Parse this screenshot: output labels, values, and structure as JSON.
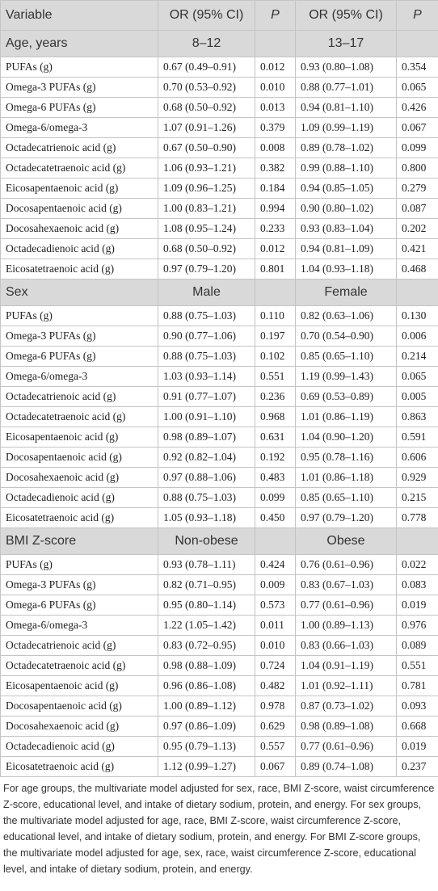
{
  "table": {
    "header": [
      "Variable",
      "OR (95% CI)",
      "P",
      "OR (95% CI)",
      "P"
    ],
    "sections": [
      {
        "label": "Age, years",
        "group1": "8–12",
        "group2": "13–17",
        "rows": [
          [
            "PUFAs (g)",
            "0.67 (0.49–0.91)",
            "0.012",
            "0.93 (0.80–1.08)",
            "0.354"
          ],
          [
            "Omega-3 PUFAs (g)",
            "0.70 (0.53–0.92)",
            "0.010",
            "0.88 (0.77–1.01)",
            "0.065"
          ],
          [
            "Omega-6 PUFAs (g)",
            "0.68 (0.50–0.92)",
            "0.013",
            "0.94 (0.81–1.10)",
            "0.426"
          ],
          [
            "Omega-6/omega-3",
            "1.07 (0.91–1.26)",
            "0.379",
            "1.09 (0.99–1.19)",
            "0.067"
          ],
          [
            "Octadecatrienoic acid (g)",
            "0.67 (0.50–0.90)",
            "0.008",
            "0.89 (0.78–1.02)",
            "0.099"
          ],
          [
            "Octadecatetraenoic acid (g)",
            "1.06 (0.93–1.21)",
            "0.382",
            "0.99 (0.88–1.10)",
            "0.800"
          ],
          [
            "Eicosapentaenoic acid (g)",
            "1.09 (0.96–1.25)",
            "0.184",
            "0.94 (0.85–1.05)",
            "0.279"
          ],
          [
            "Docosapentaenoic acid (g)",
            "1.00 (0.83–1.21)",
            "0.994",
            "0.90 (0.80–1.02)",
            "0.087"
          ],
          [
            "Docosahexaenoic acid (g)",
            "1.08 (0.95–1.24)",
            "0.233",
            "0.93 (0.83–1.04)",
            "0.202"
          ],
          [
            "Octadecadienoic acid (g)",
            "0.68 (0.50–0.92)",
            "0.012",
            "0.94 (0.81–1.09)",
            "0.421"
          ],
          [
            "Eicosatetraenoic acid (g)",
            "0.97 (0.79–1.20)",
            "0.801",
            "1.04 (0.93–1.18)",
            "0.468"
          ]
        ]
      },
      {
        "label": "Sex",
        "group1": "Male",
        "group2": "Female",
        "rows": [
          [
            "PUFAs (g)",
            "0.88 (0.75–1.03)",
            "0.110",
            "0.82 (0.63–1.06)",
            "0.130"
          ],
          [
            "Omega-3 PUFAs (g)",
            "0.90 (0.77–1.06)",
            "0.197",
            "0.70 (0.54–0.90)",
            "0.006"
          ],
          [
            "Omega-6 PUFAs (g)",
            "0.88 (0.75–1.03)",
            "0.102",
            "0.85 (0.65–1.10)",
            "0.214"
          ],
          [
            "Omega-6/omega-3",
            "1.03 (0.93–1.14)",
            "0.551",
            "1.19 (0.99–1.43)",
            "0.065"
          ],
          [
            "Octadecatrienoic acid (g)",
            "0.91 (0.77–1.07)",
            "0.236",
            "0.69 (0.53–0.89)",
            "0.005"
          ],
          [
            "Octadecatetraenoic acid (g)",
            "1.00 (0.91–1.10)",
            "0.968",
            "1.01 (0.86–1.19)",
            "0.863"
          ],
          [
            "Eicosapentaenoic acid (g)",
            "0.98 (0.89–1.07)",
            "0.631",
            "1.04 (0.90–1.20)",
            "0.591"
          ],
          [
            "Docosapentaenoic acid (g)",
            "0.92 (0.82–1.04)",
            "0.192",
            "0.95 (0.78–1.16)",
            "0.606"
          ],
          [
            "Docosahexaenoic acid (g)",
            "0.97 (0.88–1.06)",
            "0.483",
            "1.01 (0.86–1.18)",
            "0.929"
          ],
          [
            "Octadecadienoic acid (g)",
            "0.88 (0.75–1.03)",
            "0.099",
            "0.85 (0.65–1.10)",
            "0.215"
          ],
          [
            "Eicosatetraenoic acid (g)",
            "1.05 (0.93–1.18)",
            "0.450",
            "0.97 (0.79–1.20)",
            "0.778"
          ]
        ]
      },
      {
        "label": "BMI Z-score",
        "group1": "Non-obese",
        "group2": "Obese",
        "rows": [
          [
            "PUFAs (g)",
            "0.93 (0.78–1.11)",
            "0.424",
            "0.76 (0.61–0.96)",
            "0.022"
          ],
          [
            "Omega-3 PUFAs (g)",
            "0.82 (0.71–0.95)",
            "0.009",
            "0.83 (0.67–1.03)",
            "0.083"
          ],
          [
            "Omega-6 PUFAs (g)",
            "0.95 (0.80–1.14)",
            "0.573",
            "0.77 (0.61–0.96)",
            "0.019"
          ],
          [
            "Omega-6/omega-3",
            "1.22 (1.05–1.42)",
            "0.011",
            "1.00 (0.89–1.13)",
            "0.976"
          ],
          [
            "Octadecatrienoic acid (g)",
            "0.83 (0.72–0.95)",
            "0.010",
            "0.83 (0.66–1.03)",
            "0.089"
          ],
          [
            "Octadecatetraenoic acid (g)",
            "0.98 (0.88–1.09)",
            "0.724",
            "1.04 (0.91–1.19)",
            "0.551"
          ],
          [
            "Eicosapentaenoic acid (g)",
            "0.96 (0.86–1.08)",
            "0.482",
            "1.01 (0.92–1.11)",
            "0.781"
          ],
          [
            "Docosapentaenoic acid (g)",
            "1.00 (0.89–1.12)",
            "0.978",
            "0.87 (0.73–1.02)",
            "0.093"
          ],
          [
            "Docosahexaenoic acid (g)",
            "0.97 (0.86–1.09)",
            "0.629",
            "0.98 (0.89–1.08)",
            "0.668"
          ],
          [
            "Octadecadienoic acid (g)",
            "0.95 (0.79–1.13)",
            "0.557",
            "0.77 (0.61–0.96)",
            "0.019"
          ],
          [
            "Eicosatetraenoic acid (g)",
            "1.12 (0.99–1.27)",
            "0.067",
            "0.89 (0.74–1.08)",
            "0.237"
          ]
        ]
      }
    ],
    "footnote": "For age groups, the multivariate model adjusted for sex, race, BMI Z-score, waist circumference Z-score, educational level, and intake of dietary sodium, protein, and energy. For sex groups, the multivariate model adjusted for age, race, BMI Z-score, waist circumference Z-score, educational level, and intake of dietary sodium, protein, and energy. For BMI Z-score groups, the multivariate model adjusted for age, sex, race, waist circumference Z-score, educational level, and intake of dietary sodium, protein, and energy."
  }
}
